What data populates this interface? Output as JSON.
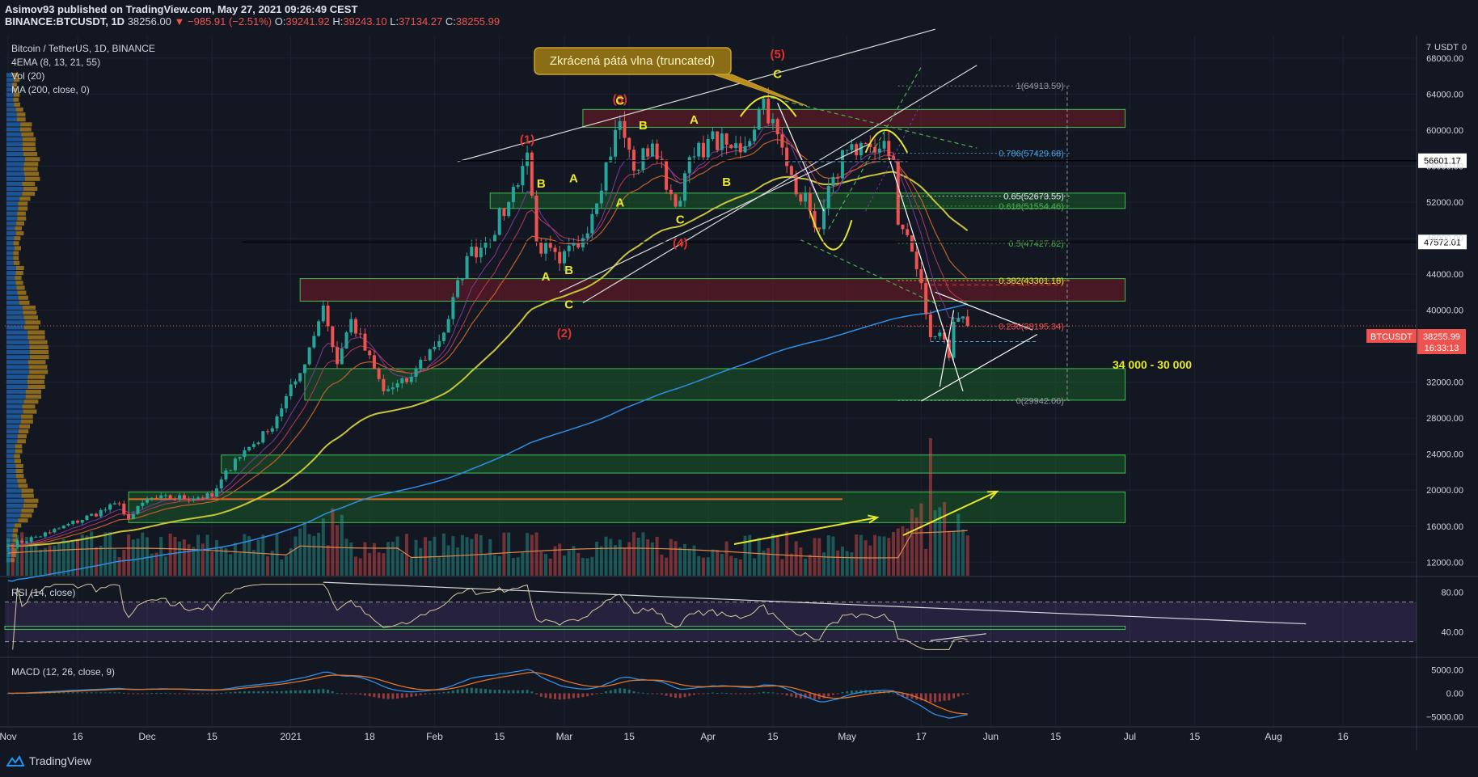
{
  "header": {
    "line1": "Asimov93 published on TradingView.com, May 27, 2021 09:26:49 CEST",
    "symbol": "BINANCE:BTCUSDT, 1D",
    "price": "38256.00",
    "change": "▼ −985.91 (−2.51%)",
    "open_label": "O:",
    "open": "39241.92",
    "high_label": "H:",
    "high": "39243.10",
    "low_label": "L:",
    "low": "37134.27",
    "close_label": "C:",
    "close": "38255.99"
  },
  "legend": {
    "title": "Bitcoin / TetherUS, 1D, BINANCE",
    "ema": "4EMA (8, 13, 21, 55)",
    "vol": "Vol (20)",
    "ma": "MA (200, close, 0)"
  },
  "branding": {
    "name": "TradingView"
  },
  "colors": {
    "bg": "#131722",
    "up": "#26a69a",
    "down": "#ef5350",
    "grid": "#1e2230",
    "zone_red": "#8b1a2a",
    "zone_green": "#1d6b2a",
    "yellow": "#e8e82a",
    "wave_red": "#e0302a"
  },
  "chart_data": {
    "type": "candlestick",
    "symbol": "BTCUSDT",
    "interval": "1D",
    "y_axis": {
      "unit_label": "USDT",
      "scale_ticks": [
        "7"
      ],
      "ticks": [
        12000,
        16000,
        20000,
        24000,
        28000,
        32000,
        36000,
        40000,
        44000,
        48000,
        52000,
        56000,
        60000,
        64000,
        68000
      ],
      "range": [
        10500,
        70500
      ]
    },
    "x_axis": {
      "labels": [
        {
          "text": "Nov",
          "date": "2020-11-01"
        },
        {
          "text": "16",
          "date": "2020-11-16"
        },
        {
          "text": "Dec",
          "date": "2020-12-01"
        },
        {
          "text": "15",
          "date": "2020-12-15"
        },
        {
          "text": "2021",
          "date": "2021-01-01"
        },
        {
          "text": "18",
          "date": "2021-01-18"
        },
        {
          "text": "Feb",
          "date": "2021-02-01"
        },
        {
          "text": "15",
          "date": "2021-02-15"
        },
        {
          "text": "Mar",
          "date": "2021-03-01"
        },
        {
          "text": "15",
          "date": "2021-03-15"
        },
        {
          "text": "Apr",
          "date": "2021-04-01"
        },
        {
          "text": "15",
          "date": "2021-04-15"
        },
        {
          "text": "May",
          "date": "2021-05-01"
        },
        {
          "text": "17",
          "date": "2021-05-17"
        },
        {
          "text": "Jun",
          "date": "2021-06-01"
        },
        {
          "text": "15",
          "date": "2021-06-15"
        },
        {
          "text": "Jul",
          "date": "2021-07-01"
        },
        {
          "text": "15",
          "date": "2021-07-15"
        },
        {
          "text": "Aug",
          "date": "2021-08-01"
        },
        {
          "text": "16",
          "date": "2021-08-16"
        }
      ]
    },
    "price_anchors": [
      [
        "2020-11-01",
        13800
      ],
      [
        "2020-11-10",
        15300
      ],
      [
        "2020-11-25",
        18500
      ],
      [
        "2020-11-27",
        16800
      ],
      [
        "2020-12-01",
        19000
      ],
      [
        "2020-12-15",
        19300
      ],
      [
        "2020-12-20",
        23500
      ],
      [
        "2020-12-27",
        26500
      ],
      [
        "2021-01-03",
        33000
      ],
      [
        "2021-01-08",
        40500
      ],
      [
        "2021-01-11",
        34000
      ],
      [
        "2021-01-14",
        39000
      ],
      [
        "2021-01-21",
        31000
      ],
      [
        "2021-01-26",
        32000
      ],
      [
        "2021-01-28",
        33500
      ],
      [
        "2021-02-03",
        37500
      ],
      [
        "2021-02-08",
        46000
      ],
      [
        "2021-02-12",
        47500
      ],
      [
        "2021-02-17",
        52000
      ],
      [
        "2021-02-21",
        57500
      ],
      [
        "2021-02-23",
        47500
      ],
      [
        "2021-02-28",
        45200
      ],
      [
        "2021-03-05",
        48000
      ],
      [
        "2021-03-13",
        61000
      ],
      [
        "2021-03-16",
        55500
      ],
      [
        "2021-03-20",
        58500
      ],
      [
        "2021-03-25",
        51500
      ],
      [
        "2021-03-27",
        55200
      ],
      [
        "2021-04-01",
        59000
      ],
      [
        "2021-04-06",
        58000
      ],
      [
        "2021-04-09",
        58200
      ],
      [
        "2021-04-13",
        63500
      ],
      [
        "2021-04-18",
        56000
      ],
      [
        "2021-04-23",
        51000
      ],
      [
        "2021-04-25",
        49000
      ],
      [
        "2021-04-28",
        54800
      ],
      [
        "2021-05-01",
        57800
      ],
      [
        "2021-05-03",
        57200
      ],
      [
        "2021-05-07",
        57500
      ],
      [
        "2021-05-09",
        58800
      ],
      [
        "2021-05-11",
        56700
      ],
      [
        "2021-05-12",
        49500
      ],
      [
        "2021-05-15",
        46500
      ],
      [
        "2021-05-17",
        43000
      ],
      [
        "2021-05-19",
        37000
      ],
      [
        "2021-05-21",
        37500
      ],
      [
        "2021-05-23",
        34700
      ],
      [
        "2021-05-24",
        38700
      ],
      [
        "2021-05-26",
        39300
      ],
      [
        "2021-05-27",
        38256
      ]
    ],
    "last_price": {
      "label": "BTCUSDT",
      "value": "38255.99",
      "countdown": "16:33:13"
    },
    "price_tags": [
      {
        "value": "56601.17",
        "price": 56601.17
      },
      {
        "value": "47572.01",
        "price": 47572.01
      }
    ],
    "fibonacci": [
      {
        "label": "1(64913.59)",
        "price": 64913.59,
        "color": "#9598a1"
      },
      {
        "label": "0.786(57429.68)",
        "price": 57429.68,
        "color": "#4aa3df"
      },
      {
        "label": "0.65(52673.55)",
        "price": 52673.55,
        "color": "#e0e3eb"
      },
      {
        "label": "0.618(51554.46)",
        "price": 51554.46,
        "color": "#4caf50"
      },
      {
        "label": "0.5(47427.82)",
        "price": 47427.82,
        "color": "#4caf50"
      },
      {
        "label": "0.382(43301.18)",
        "price": 43301.18,
        "color": "#e8e82a"
      },
      {
        "label": "0.236(38195.34)",
        "price": 38195.34,
        "color": "#ef5350"
      },
      {
        "label": "0(29942.06)",
        "price": 29942.06,
        "color": "#9598a1"
      }
    ],
    "zones": [
      {
        "type": "resistance",
        "from": "2021-03-05",
        "to": "2021-06-30",
        "low": 60300,
        "high": 62300
      },
      {
        "type": "support",
        "from": "2021-02-13",
        "to": "2021-06-30",
        "low": 51300,
        "high": 53000
      },
      {
        "type": "resistance",
        "from": "2021-01-03",
        "to": "2021-06-30",
        "low": 41000,
        "high": 43500
      },
      {
        "type": "support",
        "from": "2021-01-04",
        "to": "2021-06-30",
        "low": 30000,
        "high": 33500
      },
      {
        "type": "support",
        "from": "2020-12-17",
        "to": "2021-06-30",
        "low": 21900,
        "high": 23900
      },
      {
        "type": "support",
        "from": "2020-11-27",
        "to": "2021-06-30",
        "low": 16400,
        "high": 19800
      }
    ],
    "annotations": {
      "callout": "Zkrácená pátá vlna (truncated)",
      "target_range": "34 000 - 30 000",
      "wave_labels": [
        {
          "t": "(1)",
          "d": "2021-02-21",
          "p": 58500,
          "c": "red"
        },
        {
          "t": "(2)",
          "d": "2021-03-01",
          "p": 37000,
          "c": "red"
        },
        {
          "t": "(3)",
          "d": "2021-03-13",
          "p": 63000,
          "c": "red"
        },
        {
          "t": "(4)",
          "d": "2021-03-26",
          "p": 47000,
          "c": "red"
        },
        {
          "t": "(5)",
          "d": "2021-04-16",
          "p": 68000,
          "c": "red"
        },
        {
          "t": "A",
          "d": "2021-02-25",
          "p": 43300,
          "c": "yellow"
        },
        {
          "t": "B",
          "d": "2021-03-02",
          "p": 44000,
          "c": "yellow"
        },
        {
          "t": "C",
          "d": "2021-03-02",
          "p": 40200,
          "c": "yellow"
        },
        {
          "t": "C",
          "d": "2021-03-13",
          "p": 62800,
          "c": "yellow"
        },
        {
          "t": "B",
          "d": "2021-02-24",
          "p": 53600,
          "c": "yellow"
        },
        {
          "t": "A",
          "d": "2021-03-03",
          "p": 54200,
          "c": "yellow"
        },
        {
          "t": "A",
          "d": "2021-03-13",
          "p": 51500,
          "c": "yellow"
        },
        {
          "t": "B",
          "d": "2021-03-18",
          "p": 60100,
          "c": "yellow"
        },
        {
          "t": "A",
          "d": "2021-03-29",
          "p": 60700,
          "c": "yellow"
        },
        {
          "t": "B",
          "d": "2021-04-05",
          "p": 53800,
          "c": "yellow"
        },
        {
          "t": "C",
          "d": "2021-03-26",
          "p": 49600,
          "c": "yellow"
        },
        {
          "t": "C",
          "d": "2021-04-16",
          "p": 65800,
          "c": "yellow"
        }
      ]
    },
    "volume_profile": true,
    "rsi": {
      "title": "RSI (14, close)",
      "ticks": [
        "80.00",
        "40.00"
      ],
      "tick_values": [
        80,
        40
      ],
      "band": [
        70,
        30
      ],
      "range": [
        15,
        95
      ]
    },
    "macd": {
      "title": "MACD (12, 26, close, 9)",
      "ticks": [
        "5000.00",
        "0.00",
        "−5000.00"
      ],
      "tick_values": [
        5000,
        0,
        -5000
      ],
      "range": [
        -7000,
        7500
      ]
    }
  }
}
